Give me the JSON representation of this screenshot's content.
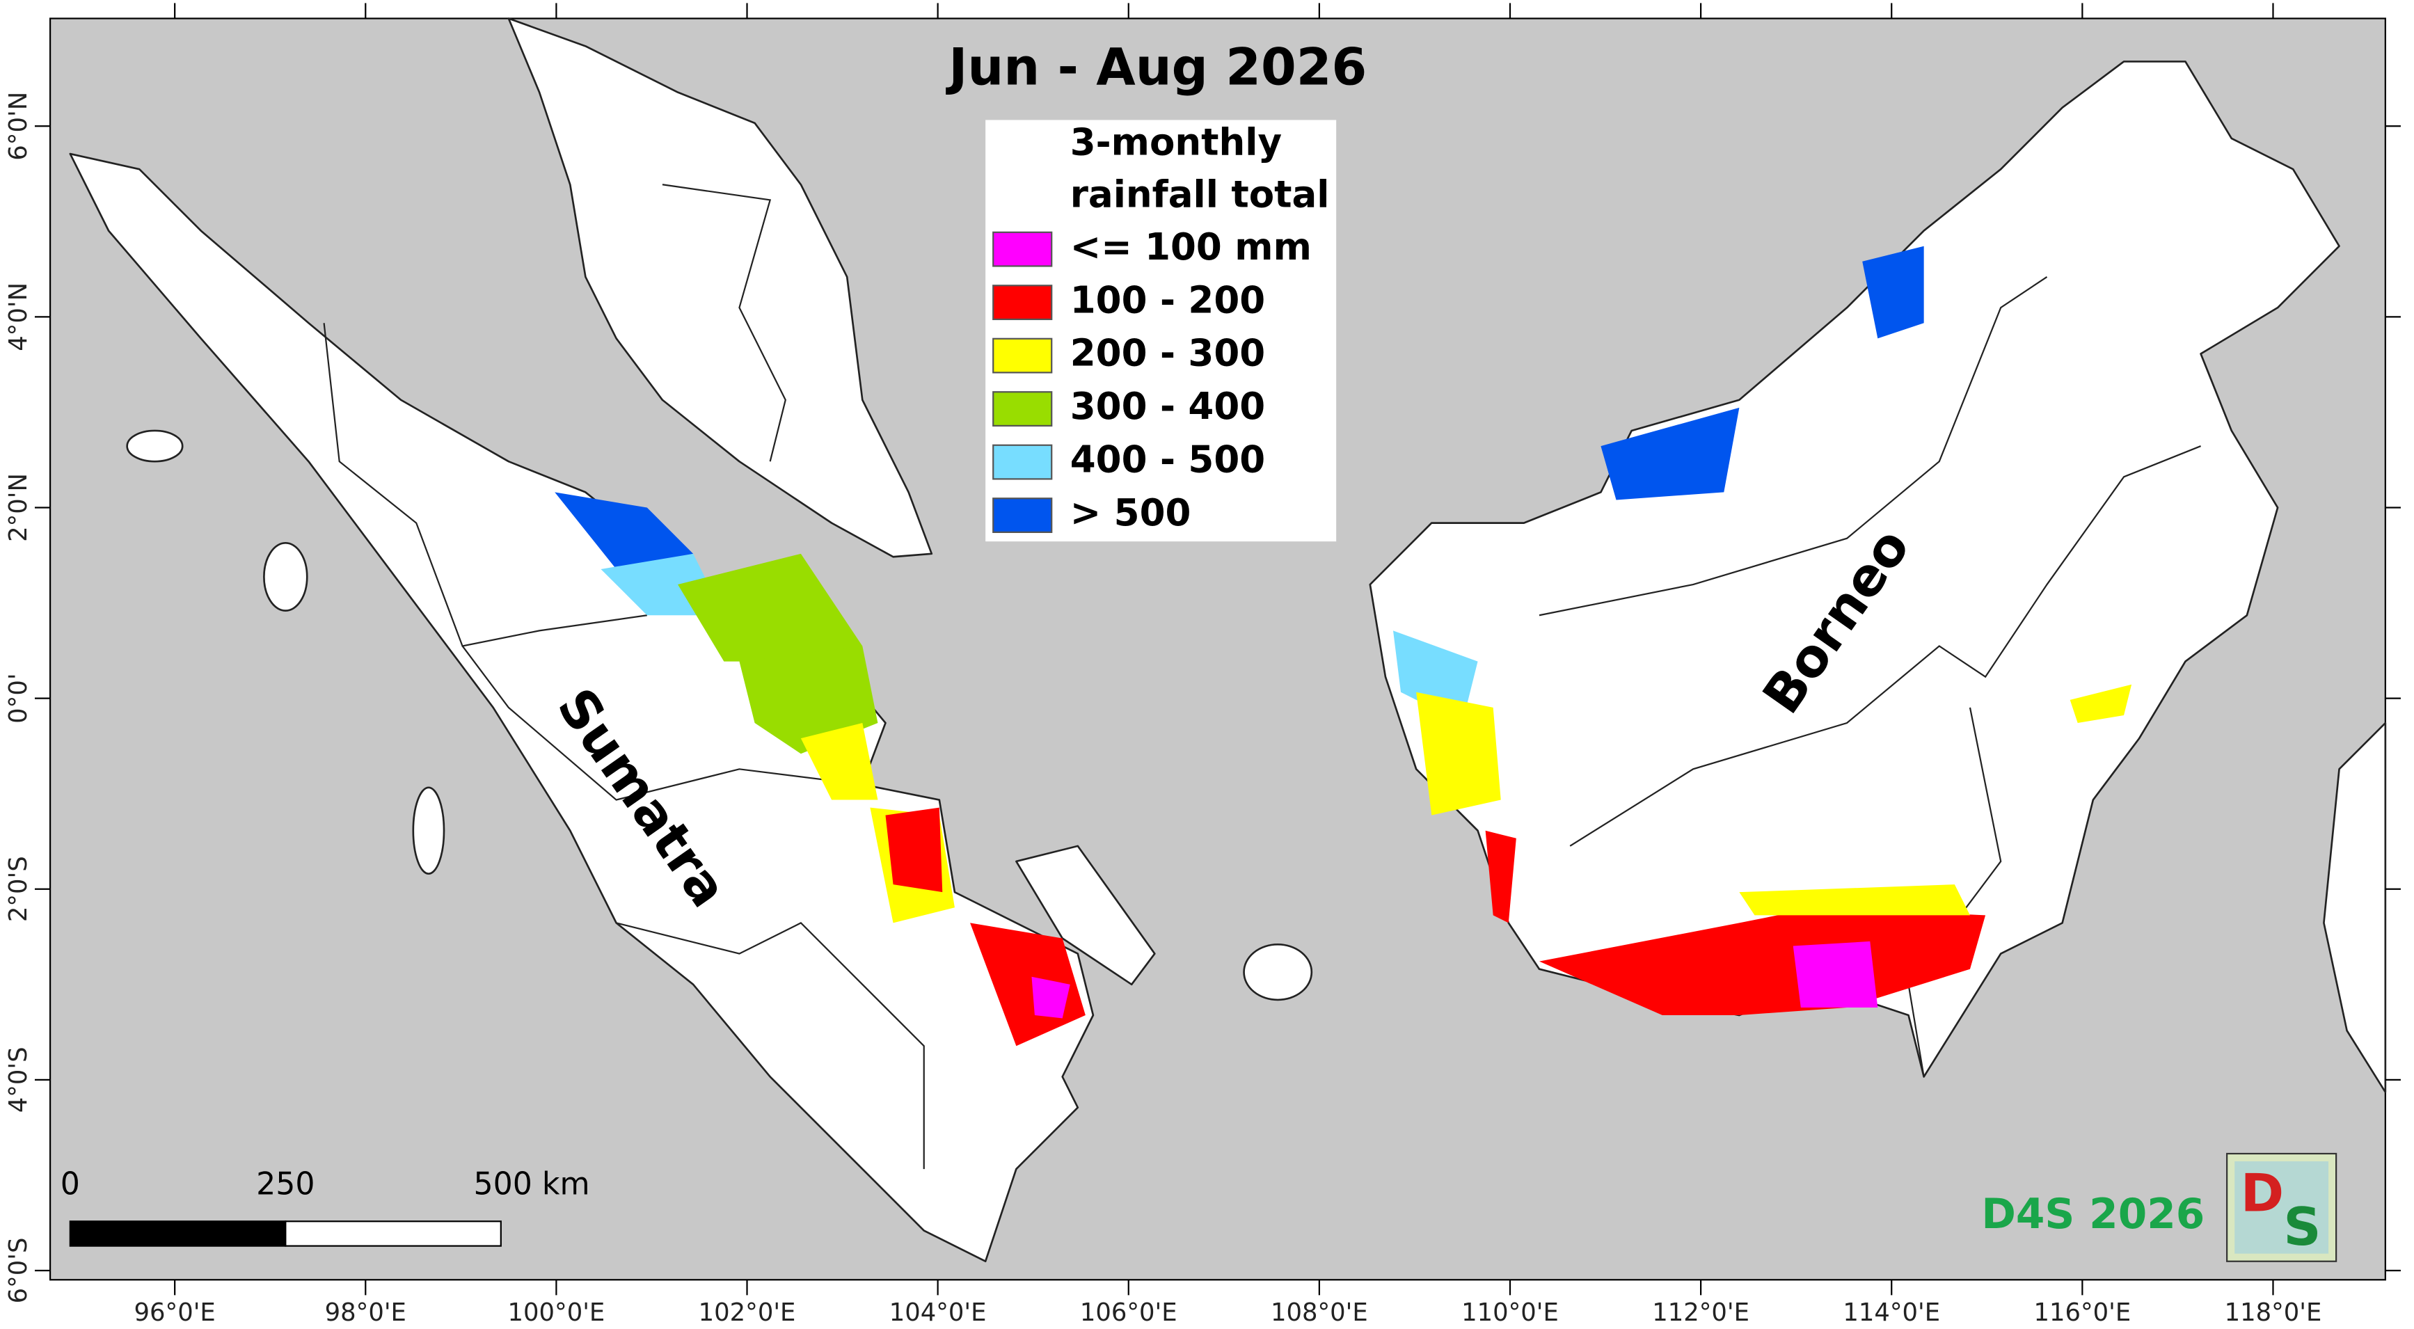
{
  "title": "Jun - Aug 2026",
  "legend": {
    "title_lines": [
      "3-monthly",
      "rainfall total"
    ],
    "items": [
      {
        "label": "<= 100 mm",
        "color": "#ff00ff"
      },
      {
        "label": "100 - 200",
        "color": "#ff0000"
      },
      {
        "label": "200 - 300",
        "color": "#ffff00"
      },
      {
        "label": "300 - 400",
        "color": "#99dd00"
      },
      {
        "label": "400 - 500",
        "color": "#77ddff"
      },
      {
        "label": "> 500",
        "color": "#0055ee"
      }
    ]
  },
  "longitude_labels": [
    "96°0'E",
    "98°0'E",
    "100°0'E",
    "102°0'E",
    "104°0'E",
    "106°0'E",
    "108°0'E",
    "110°0'E",
    "112°0'E",
    "114°0'E",
    "116°0'E",
    "118°0'E"
  ],
  "latitude_labels": [
    "6°0'N",
    "4°0'N",
    "2°0'N",
    "0°0'",
    "2°0'S",
    "4°0'S",
    "6°0'S"
  ],
  "place_labels": [
    "Sumatra",
    "Borneo"
  ],
  "scale_bar": {
    "labels": [
      "0",
      "250",
      "500 km"
    ]
  },
  "credit": "D4S 2026",
  "logo": [
    "D",
    "S"
  ]
}
